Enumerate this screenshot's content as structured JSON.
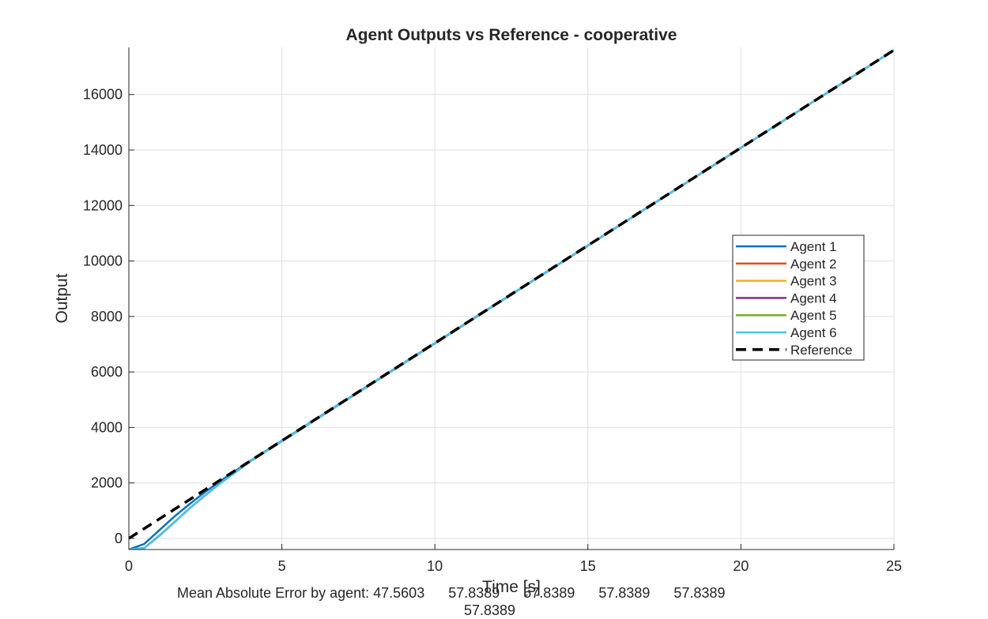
{
  "chart_data": {
    "type": "line",
    "title": "Agent Outputs vs Reference - cooperative",
    "xlabel": "Time [s]",
    "ylabel": "Output",
    "xlim": [
      0,
      25
    ],
    "ylim": [
      -400,
      17700
    ],
    "x_ticks": [
      "0",
      "5",
      "10",
      "15",
      "20",
      "25"
    ],
    "y_ticks": [
      "0",
      "2000",
      "4000",
      "6000",
      "8000",
      "10000",
      "12000",
      "14000",
      "16000"
    ],
    "grid": true,
    "legend_position": "right",
    "series": [
      {
        "name": "Agent 1",
        "color": "#0072BD",
        "style": "solid",
        "x": [
          0,
          0.5,
          1,
          1.5,
          2,
          2.5,
          3,
          3.5,
          4,
          25
        ],
        "y": [
          -400,
          -200,
          300,
          800,
          1250,
          1680,
          2080,
          2450,
          2820,
          17600
        ]
      },
      {
        "name": "Agent 2",
        "color": "#D95319",
        "style": "solid",
        "x": [
          0,
          0.5,
          1,
          1.5,
          2,
          2.5,
          3,
          3.5,
          4,
          25
        ],
        "y": [
          -400,
          -350,
          100,
          600,
          1100,
          1560,
          2000,
          2400,
          2800,
          17600
        ]
      },
      {
        "name": "Agent 3",
        "color": "#EDB120",
        "style": "solid",
        "x": [
          0,
          0.5,
          1,
          1.5,
          2,
          2.5,
          3,
          3.5,
          4,
          25
        ],
        "y": [
          -400,
          -350,
          100,
          600,
          1100,
          1560,
          2000,
          2400,
          2800,
          17600
        ]
      },
      {
        "name": "Agent 4",
        "color": "#7E2F8E",
        "style": "solid",
        "x": [
          0,
          0.5,
          1,
          1.5,
          2,
          2.5,
          3,
          3.5,
          4,
          25
        ],
        "y": [
          -400,
          -350,
          100,
          600,
          1100,
          1560,
          2000,
          2400,
          2800,
          17600
        ]
      },
      {
        "name": "Agent 5",
        "color": "#77AC30",
        "style": "solid",
        "x": [
          0,
          0.5,
          1,
          1.5,
          2,
          2.5,
          3,
          3.5,
          4,
          25
        ],
        "y": [
          -400,
          -350,
          100,
          600,
          1100,
          1560,
          2000,
          2400,
          2800,
          17600
        ]
      },
      {
        "name": "Agent 6",
        "color": "#4DBEEE",
        "style": "solid",
        "x": [
          0,
          0.5,
          1,
          1.5,
          2,
          2.5,
          3,
          3.5,
          4,
          25
        ],
        "y": [
          -400,
          -350,
          100,
          600,
          1100,
          1560,
          2000,
          2400,
          2800,
          17600
        ]
      },
      {
        "name": "Reference",
        "color": "#000000",
        "style": "dashed",
        "x": [
          0,
          25
        ],
        "y": [
          0,
          17600
        ]
      }
    ]
  },
  "footer": {
    "line1": "Mean Absolute Error by agent: 47.5603      57.8389      57.8389      57.8389      57.8389",
    "line2": "57.8389"
  }
}
